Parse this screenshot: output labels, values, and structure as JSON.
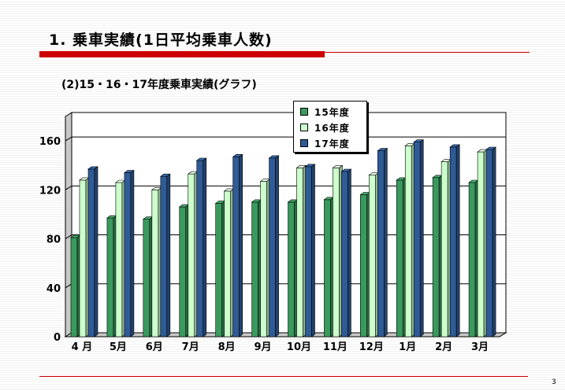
{
  "slide": {
    "title": "1. 乗車実績(1日平均乗車人数)",
    "subtitle": "(2)15・16・17年度乗車実績(グラフ)",
    "page_number": "3"
  },
  "chart_data": {
    "type": "bar",
    "categories": [
      "4 月",
      "5月",
      "6月",
      "7月",
      "8月",
      "9月",
      "10月",
      "11月",
      "12月",
      "1月",
      "2月",
      "3月"
    ],
    "series": [
      {
        "name": "15年度",
        "color": "#3a9a5e",
        "values": [
          81,
          97,
          96,
          106,
          109,
          110,
          110,
          112,
          116,
          128,
          130,
          126
        ]
      },
      {
        "name": "16年度",
        "color": "#ccffcc",
        "values": [
          128,
          126,
          120,
          133,
          119,
          127,
          138,
          138,
          132,
          156,
          143,
          151
        ]
      },
      {
        "name": "17年度",
        "color": "#2f5b96",
        "values": [
          137,
          134,
          131,
          144,
          147,
          146,
          139,
          135,
          152,
          159,
          155,
          153
        ]
      }
    ],
    "ylim": [
      0,
      180
    ],
    "yticks": [
      "0",
      "40",
      "80",
      "120",
      "160"
    ],
    "ytick_values": [
      0,
      40,
      80,
      120,
      160
    ],
    "grid": true,
    "legend_position": "top-center"
  }
}
